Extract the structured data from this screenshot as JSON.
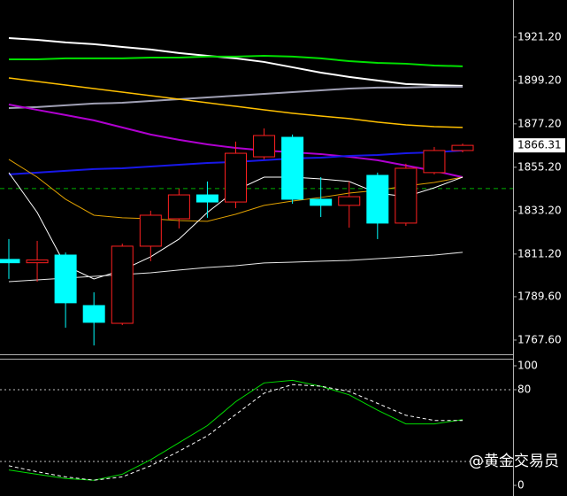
{
  "chart_data": [
    {
      "type": "candlestick",
      "open": [
        1808.5,
        1806.8,
        1810.7,
        1785.1,
        1776.1,
        1815.2,
        1829.1,
        1841.2,
        1837.6,
        1860.5,
        1870.4,
        1839.0,
        1835.9,
        1851.1,
        1826.9,
        1852.5,
        1863.7
      ],
      "high": [
        1818.8,
        1817.9,
        1812.0,
        1791.8,
        1816.5,
        1833.2,
        1844.4,
        1848.0,
        1868.2,
        1874.9,
        1871.8,
        1850.2,
        1848.0,
        1852.5,
        1857.0,
        1865.5,
        1867.2
      ],
      "low": [
        1798.6,
        1797.2,
        1773.9,
        1764.9,
        1775.2,
        1807.6,
        1824.2,
        1829.6,
        1834.5,
        1859.2,
        1836.7,
        1830.0,
        1824.6,
        1818.8,
        1825.5,
        1851.6,
        1862.8
      ],
      "close": [
        1806.8,
        1808.2,
        1786.5,
        1776.6,
        1815.2,
        1830.9,
        1841.2,
        1837.6,
        1862.3,
        1871.3,
        1839.0,
        1835.9,
        1840.3,
        1826.9,
        1854.7,
        1863.7,
        1866.31
      ],
      "up_color": "#ff2020",
      "down_color": "#00ffff",
      "series": [
        {
          "color": "#ffffff",
          "width": 2,
          "values": [
            1920.7,
            1919.8,
            1918.5,
            1917.6,
            1916.2,
            1914.9,
            1913.1,
            1911.7,
            1910.4,
            1908.6,
            1905.9,
            1903.2,
            1901.0,
            1899.2,
            1897.4,
            1896.9,
            1896.5
          ]
        },
        {
          "color": "#00e000",
          "width": 2,
          "values": [
            1909.9,
            1909.9,
            1910.4,
            1910.4,
            1910.4,
            1910.8,
            1910.8,
            1911.3,
            1911.3,
            1911.7,
            1911.3,
            1910.4,
            1909.0,
            1908.1,
            1907.7,
            1906.8,
            1906.4
          ]
        },
        {
          "color": "#a0a0b4",
          "width": 2,
          "values": [
            1885.2,
            1885.7,
            1886.6,
            1887.5,
            1887.9,
            1888.8,
            1889.7,
            1890.6,
            1891.5,
            1892.4,
            1893.3,
            1894.2,
            1895.1,
            1895.6,
            1895.6,
            1896.0,
            1896.0
          ]
        },
        {
          "color": "#ffc000",
          "width": 1.5,
          "values": [
            1900.5,
            1898.7,
            1896.9,
            1895.1,
            1893.3,
            1891.5,
            1889.7,
            1887.9,
            1886.1,
            1884.3,
            1882.6,
            1881.2,
            1879.9,
            1878.1,
            1876.7,
            1875.8,
            1875.4
          ]
        },
        {
          "color": "#b000d0",
          "width": 2,
          "values": [
            1887.0,
            1884.3,
            1881.7,
            1879.0,
            1875.4,
            1871.8,
            1869.1,
            1866.8,
            1865.0,
            1863.7,
            1862.8,
            1861.9,
            1860.5,
            1858.8,
            1856.1,
            1853.4,
            1850.2
          ]
        },
        {
          "color": "#1818e8",
          "width": 2,
          "values": [
            1851.6,
            1852.5,
            1853.4,
            1854.3,
            1854.7,
            1855.6,
            1856.5,
            1857.4,
            1857.9,
            1858.8,
            1859.7,
            1860.1,
            1861.0,
            1861.4,
            1862.3,
            1862.8,
            1863.7
          ]
        },
        {
          "color": "#e0a000",
          "width": 1,
          "values": [
            1859.2,
            1850.2,
            1839.0,
            1830.9,
            1829.6,
            1829.1,
            1828.2,
            1827.8,
            1831.4,
            1835.9,
            1838.1,
            1839.9,
            1842.1,
            1843.5,
            1845.7,
            1847.5,
            1850.2
          ]
        },
        {
          "color": "#ffffff",
          "width": 1,
          "values": [
            1852.5,
            1832.3,
            1805.3,
            1798.6,
            1803.1,
            1809.8,
            1818.8,
            1832.3,
            1843.5,
            1850.2,
            1850.2,
            1849.3,
            1848.0,
            1842.1,
            1840.3,
            1844.8,
            1850.2
          ]
        },
        {
          "color": "#e8e8e8",
          "width": 1,
          "values": [
            1797.2,
            1798.1,
            1799.0,
            1799.9,
            1800.8,
            1801.7,
            1803.1,
            1804.4,
            1805.3,
            1806.7,
            1807.1,
            1807.6,
            1808.0,
            1808.9,
            1809.8,
            1810.7,
            1812.1
          ]
        }
      ],
      "hline": 1844.4,
      "hline_color": "#00b000",
      "ylim": [
        1760.4,
        1940.0
      ],
      "yticks": [
        {
          "value": 1921.2,
          "label": "1921.20"
        },
        {
          "value": 1899.2,
          "label": "1899.20"
        },
        {
          "value": 1877.2,
          "label": "1877.20"
        },
        {
          "value": 1855.2,
          "label": "1855.20"
        },
        {
          "value": 1833.2,
          "label": "1833.20"
        },
        {
          "value": 1811.2,
          "label": "1811.20"
        },
        {
          "value": 1789.6,
          "label": "1789.60"
        },
        {
          "value": 1767.6,
          "label": "1767.60"
        }
      ]
    },
    {
      "type": "line",
      "series": [
        {
          "color": "#00dd00",
          "dashed": false,
          "values": [
            12.9,
            9.3,
            5.7,
            4.3,
            9.3,
            21.4,
            35.7,
            50.0,
            70.0,
            85.7,
            87.9,
            82.9,
            75.7,
            62.9,
            51.4,
            51.4,
            55.0
          ]
        },
        {
          "color": "#ffffff",
          "dashed": true,
          "values": [
            16.4,
            11.4,
            7.1,
            4.3,
            7.1,
            16.4,
            28.6,
            41.4,
            59.3,
            77.1,
            84.3,
            82.9,
            78.6,
            68.6,
            58.6,
            54.3,
            54.3
          ]
        }
      ],
      "levels": [
        80,
        20
      ],
      "ylim": [
        0,
        100
      ],
      "yticks": [
        100,
        80,
        0
      ]
    }
  ],
  "watermark": "@黄金交易员"
}
